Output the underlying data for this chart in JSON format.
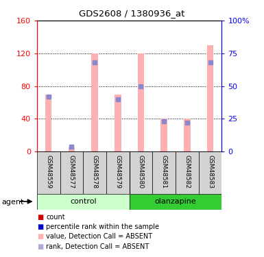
{
  "title": "GDS2608 / 1380936_at",
  "samples": [
    "GSM48559",
    "GSM48577",
    "GSM48578",
    "GSM48579",
    "GSM48580",
    "GSM48581",
    "GSM48582",
    "GSM48583"
  ],
  "group_labels": [
    "control",
    "olanzapine"
  ],
  "ctrl_color_light": "#ccffcc",
  "ctrl_color": "#90ee90",
  "olan_color": "#33cc33",
  "value_absent": [
    70,
    5,
    120,
    70,
    120,
    40,
    40,
    130
  ],
  "rank_absent_pct": [
    42,
    4,
    68,
    40,
    50,
    23,
    22,
    68
  ],
  "ylim_left": [
    0,
    160
  ],
  "ylim_right": [
    0,
    100
  ],
  "yticks_left": [
    0,
    40,
    80,
    120,
    160
  ],
  "yticks_right": [
    0,
    25,
    50,
    75,
    100
  ],
  "pink_bar_color": "#ffb0b0",
  "blue_mark_color": "#8888cc",
  "legend_items": [
    {
      "label": "count",
      "color": "#cc0000"
    },
    {
      "label": "percentile rank within the sample",
      "color": "#0000cc"
    },
    {
      "label": "value, Detection Call = ABSENT",
      "color": "#ffb0b0"
    },
    {
      "label": "rank, Detection Call = ABSENT",
      "color": "#aaaadd"
    }
  ],
  "fig_width": 3.85,
  "fig_height": 3.75
}
